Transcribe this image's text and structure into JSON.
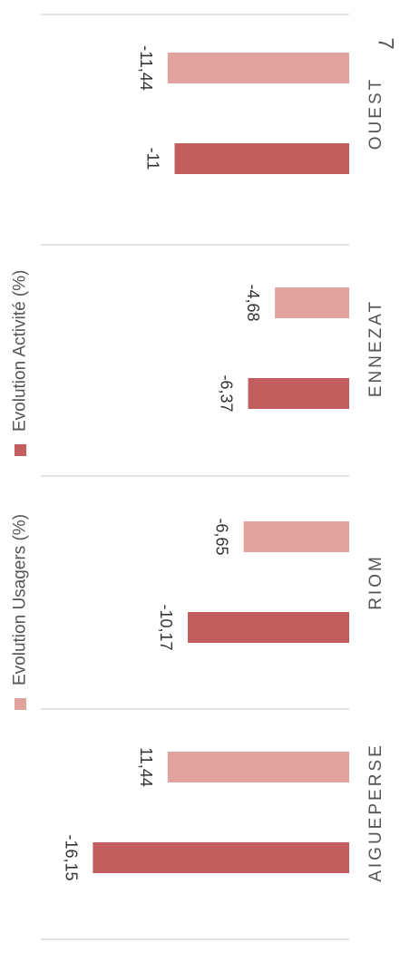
{
  "page_number": "7",
  "colors": {
    "usagers": "#E0A39E",
    "activite": "#C25E5E",
    "divider": "#E3E3E3",
    "text": "#555555"
  },
  "chart_data": {
    "type": "bar",
    "orientation": "rotated-90",
    "categories": [
      "AIGUEPERSE",
      "RIOM",
      "ENNEZAT",
      "OUEST"
    ],
    "series": [
      {
        "name": "Evolution Usagers (%)",
        "values": [
          11.44,
          -6.65,
          -4.68,
          -11.44
        ]
      },
      {
        "name": "Evolution Activité (%)",
        "values": [
          -16.15,
          -10.17,
          -6.37,
          -11
        ]
      }
    ],
    "data_labels": {
      "usagers": [
        "11,44",
        "-6,65",
        "-4,68",
        "-11,44"
      ],
      "activite": [
        "-16,15",
        "-10,17",
        "-6,37",
        "-11"
      ]
    },
    "legend_position": "left"
  }
}
